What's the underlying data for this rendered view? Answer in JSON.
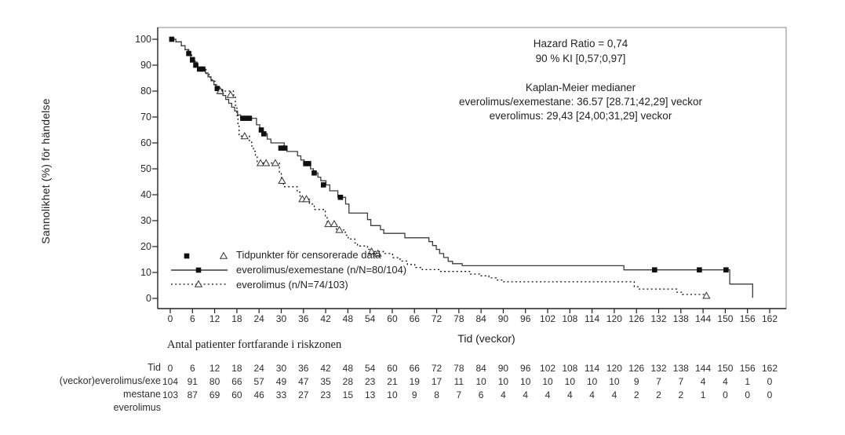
{
  "chart_data": {
    "type": "line",
    "subtype": "kaplan-meier-step",
    "xlabel": "Tid (veckor)",
    "ylabel": "Sannolikhet (%) för händelse",
    "xlim": [
      0,
      162
    ],
    "ylim": [
      0,
      100
    ],
    "grid": false,
    "legend_position": "inside-bottom-left",
    "x_ticks": [
      0,
      6,
      12,
      18,
      24,
      30,
      36,
      42,
      48,
      54,
      60,
      66,
      72,
      78,
      84,
      90,
      96,
      102,
      108,
      114,
      120,
      126,
      132,
      138,
      144,
      150,
      156,
      162
    ],
    "y_ticks": [
      100,
      90,
      80,
      70,
      60,
      50,
      40,
      30,
      20,
      10,
      0
    ],
    "annotations": {
      "hazard_ratio": "Hazard Ratio = 0,74",
      "ci": "90 % KI [0,57;0,97]",
      "km_title": "Kaplan-Meier medianer",
      "km_line1": "everolimus/exemestane: 36.57 [28.71;42,29] veckor",
      "km_line2": "everolimus: 29,43 [24,00;31,29] veckor"
    },
    "legend": {
      "censored_label": "Tidpunkter för censorerade data",
      "series1_label": "everolimus/exemestane (n/N=80/104)",
      "series2_label": "everolimus (n/N=74/103)"
    },
    "series": [
      {
        "name": "everolimus/exemestane",
        "line_style": "solid",
        "marker": "filled-square",
        "color": "#3c3c3c",
        "steps": [
          [
            0,
            100
          ],
          [
            1.5,
            99
          ],
          [
            3,
            97.5
          ],
          [
            4,
            96
          ],
          [
            4.8,
            94.5
          ],
          [
            5.5,
            93
          ],
          [
            6.2,
            91.5
          ],
          [
            6.8,
            90
          ],
          [
            7.5,
            88.5
          ],
          [
            9.5,
            87
          ],
          [
            10.2,
            85.5
          ],
          [
            11,
            84
          ],
          [
            11.8,
            82.5
          ],
          [
            12.5,
            81
          ],
          [
            13.2,
            79.8
          ],
          [
            14.2,
            78.3
          ],
          [
            15,
            76.8
          ],
          [
            15.8,
            75.3
          ],
          [
            16.6,
            73.8
          ],
          [
            17.4,
            72.3
          ],
          [
            18.2,
            70.8
          ],
          [
            19,
            69.5
          ],
          [
            23.3,
            67
          ],
          [
            24.2,
            65
          ],
          [
            25,
            63.5
          ],
          [
            26.2,
            61.5
          ],
          [
            27.2,
            60
          ],
          [
            30.8,
            58
          ],
          [
            31.5,
            56.7
          ],
          [
            34.4,
            55
          ],
          [
            35.3,
            53.4
          ],
          [
            36.2,
            52
          ],
          [
            37.9,
            50
          ],
          [
            38.7,
            48.4
          ],
          [
            39.9,
            46.8
          ],
          [
            40.7,
            45.4
          ],
          [
            42.1,
            43.8
          ],
          [
            43.1,
            41.5
          ],
          [
            45.3,
            39
          ],
          [
            47.4,
            36.4
          ],
          [
            48.3,
            32.9
          ],
          [
            53.3,
            30.4
          ],
          [
            54.2,
            28.1
          ],
          [
            56.8,
            26.5
          ],
          [
            57.7,
            25.1
          ],
          [
            63.4,
            23.4
          ],
          [
            69.9,
            21.9
          ],
          [
            70.9,
            20.4
          ],
          [
            71.9,
            18.9
          ],
          [
            72.8,
            17.3
          ],
          [
            73.9,
            15.8
          ],
          [
            75.1,
            14.3
          ],
          [
            76.3,
            13.4
          ],
          [
            78.9,
            12.6
          ],
          [
            122.6,
            11
          ],
          [
            151.2,
            5.5
          ],
          [
            157.4,
            0.2
          ]
        ],
        "censor_marks": [
          [
            0.4,
            100
          ],
          [
            5,
            94.5
          ],
          [
            6,
            92
          ],
          [
            6.9,
            90
          ],
          [
            7.9,
            88.5
          ],
          [
            8.8,
            88.5
          ],
          [
            12.7,
            81
          ],
          [
            13.6,
            79.8
          ],
          [
            19.6,
            69.5
          ],
          [
            20.6,
            69.5
          ],
          [
            21.4,
            69.5
          ],
          [
            24.6,
            65
          ],
          [
            25.3,
            63.5
          ],
          [
            29.9,
            58
          ],
          [
            31,
            58
          ],
          [
            36.6,
            52
          ],
          [
            37.4,
            52
          ],
          [
            38.9,
            48.4
          ],
          [
            41.4,
            43.8
          ],
          [
            46,
            39
          ],
          [
            130.9,
            11
          ],
          [
            143,
            11
          ],
          [
            150.2,
            11
          ]
        ]
      },
      {
        "name": "everolimus",
        "line_style": "dotted",
        "marker": "open-triangle",
        "color": "#111111",
        "steps": [
          [
            0,
            100
          ],
          [
            1.5,
            99
          ],
          [
            3,
            97.5
          ],
          [
            4,
            96
          ],
          [
            5,
            94.5
          ],
          [
            5.8,
            93
          ],
          [
            6.5,
            91.2
          ],
          [
            7.2,
            89.7
          ],
          [
            7.9,
            88.3
          ],
          [
            9.7,
            86.8
          ],
          [
            10.5,
            85.3
          ],
          [
            11.3,
            83.8
          ],
          [
            12.1,
            82.3
          ],
          [
            12.7,
            80.8
          ],
          [
            13.3,
            80
          ],
          [
            17.1,
            78.5
          ],
          [
            17.6,
            74.5
          ],
          [
            18,
            70.5
          ],
          [
            18.3,
            66.5
          ],
          [
            18.6,
            62.6
          ],
          [
            21.4,
            60.8
          ],
          [
            22,
            58.8
          ],
          [
            22.5,
            56.8
          ],
          [
            23,
            54.8
          ],
          [
            23.5,
            52.2
          ],
          [
            29.5,
            48.5
          ],
          [
            30,
            45.4
          ],
          [
            30.6,
            43.1
          ],
          [
            34.3,
            41
          ],
          [
            35.1,
            38.3
          ],
          [
            37.6,
            36.4
          ],
          [
            38.9,
            34.3
          ],
          [
            41.9,
            31.4
          ],
          [
            42.4,
            28.7
          ],
          [
            44.9,
            26.4
          ],
          [
            47.3,
            24.4
          ],
          [
            48.1,
            22.9
          ],
          [
            49.9,
            21.4
          ],
          [
            50.6,
            20.2
          ],
          [
            53.3,
            18.9
          ],
          [
            54.1,
            18.1
          ],
          [
            57.6,
            17.3
          ],
          [
            60.1,
            15.7
          ],
          [
            62.1,
            14.4
          ],
          [
            64.1,
            13.1
          ],
          [
            66.1,
            11.9
          ],
          [
            68.1,
            11.1
          ],
          [
            72.6,
            10.4
          ],
          [
            81.1,
            9.4
          ],
          [
            83.6,
            8.7
          ],
          [
            86.1,
            7.9
          ],
          [
            88.1,
            7.1
          ],
          [
            89.9,
            6.4
          ],
          [
            125.4,
            4.5
          ],
          [
            126.4,
            3.6
          ],
          [
            136.9,
            2.4
          ],
          [
            138.4,
            1.5
          ],
          [
            144.9,
            1
          ]
        ],
        "censor_marks": [
          [
            13.5,
            80
          ],
          [
            16.3,
            78.5
          ],
          [
            20.1,
            62.6
          ],
          [
            24.4,
            52.2
          ],
          [
            25.9,
            52.2
          ],
          [
            28.4,
            52.2
          ],
          [
            30.2,
            45.4
          ],
          [
            35.7,
            38.3
          ],
          [
            36.8,
            38.3
          ],
          [
            42.7,
            28.7
          ],
          [
            44.3,
            28.7
          ],
          [
            45.7,
            26.4
          ],
          [
            54.4,
            18.1
          ],
          [
            56.1,
            17.3
          ],
          [
            144.9,
            1
          ]
        ]
      }
    ],
    "risk_table": {
      "title": "Antal patienter fortfarande i riskzonen",
      "rows": [
        {
          "label": "Tid",
          "values": [
            0,
            6,
            12,
            18,
            24,
            30,
            36,
            42,
            48,
            54,
            60,
            66,
            72,
            78,
            84,
            90,
            96,
            102,
            108,
            114,
            120,
            126,
            132,
            138,
            144,
            150,
            156,
            162
          ]
        },
        {
          "label": "(veckor)everolimus/exe",
          "values": [
            104,
            91,
            80,
            66,
            57,
            49,
            47,
            35,
            28,
            23,
            21,
            19,
            17,
            11,
            10,
            10,
            10,
            10,
            10,
            10,
            10,
            9,
            7,
            7,
            4,
            4,
            1,
            0
          ]
        },
        {
          "label": "mestane",
          "values": [
            103,
            87,
            69,
            60,
            46,
            33,
            27,
            23,
            15,
            13,
            10,
            9,
            8,
            7,
            6,
            4,
            4,
            4,
            4,
            4,
            4,
            2,
            2,
            2,
            1,
            0,
            0,
            0
          ]
        },
        {
          "label": "everolimus",
          "values": []
        }
      ]
    }
  }
}
